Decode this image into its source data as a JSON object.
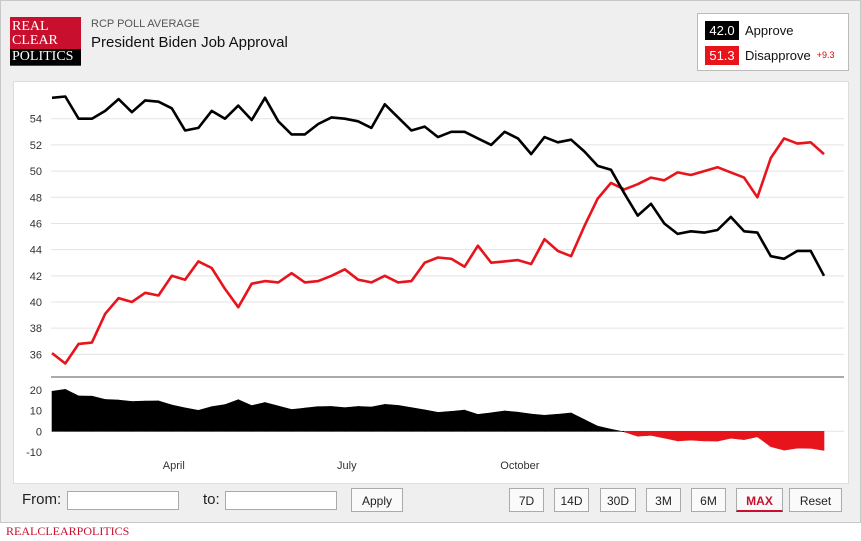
{
  "header": {
    "logo_lines": [
      "REAL",
      "CLEAR",
      "POLITICS"
    ],
    "kicker": "RCP POLL AVERAGE",
    "title": "President Biden Job Approval"
  },
  "legend": {
    "approve": {
      "value": "42.0",
      "label": "Approve",
      "color": "#000000"
    },
    "disapprove": {
      "value": "51.3",
      "label": "Disapprove",
      "change": "+9.3",
      "color": "#e8141c"
    }
  },
  "controls": {
    "from_label": "From:",
    "to_label": "to:",
    "apply": "Apply",
    "ranges": [
      "7D",
      "14D",
      "30D",
      "3M",
      "6M",
      "MAX"
    ],
    "active_range": "MAX",
    "reset": "Reset"
  },
  "footer": {
    "brand": "REALCLEARPOLITICS"
  },
  "chart_data": {
    "type": "line",
    "x_ticks": [
      "April",
      "July",
      "October"
    ],
    "y_ticks": [
      36,
      38,
      40,
      42,
      44,
      46,
      48,
      50,
      52,
      54
    ],
    "ylim": [
      34.5,
      56.5
    ],
    "grid": true,
    "series": [
      {
        "name": "Approve",
        "color": "#000000",
        "values": [
          55.6,
          55.7,
          54.0,
          54.0,
          54.6,
          55.5,
          54.5,
          55.4,
          55.3,
          54.8,
          53.1,
          53.3,
          54.6,
          54.0,
          55.0,
          53.9,
          55.6,
          53.8,
          52.8,
          52.8,
          53.6,
          54.1,
          54.0,
          53.8,
          53.3,
          55.1,
          54.1,
          53.1,
          53.4,
          52.6,
          53.0,
          53.0,
          52.5,
          52.0,
          53.0,
          52.5,
          51.3,
          52.6,
          52.2,
          52.4,
          51.5,
          50.4,
          50.1,
          48.3,
          46.6,
          47.5,
          46.0,
          45.2,
          45.4,
          45.3,
          45.5,
          46.5,
          45.4,
          45.3,
          43.5,
          43.3,
          43.9,
          43.9,
          42.0
        ]
      },
      {
        "name": "Disapprove",
        "color": "#e8141c",
        "values": [
          36.1,
          35.3,
          36.8,
          36.9,
          39.1,
          40.3,
          40.0,
          40.7,
          40.5,
          42.0,
          41.7,
          43.1,
          42.6,
          41.0,
          39.6,
          41.4,
          41.6,
          41.5,
          42.2,
          41.5,
          41.6,
          42.0,
          42.5,
          41.7,
          41.5,
          42.0,
          41.5,
          41.6,
          43.0,
          43.4,
          43.3,
          42.7,
          44.3,
          43.0,
          43.1,
          43.2,
          42.9,
          44.8,
          43.9,
          43.5,
          45.8,
          47.9,
          49.1,
          48.6,
          49.0,
          49.5,
          49.3,
          49.9,
          49.7,
          50.0,
          50.3,
          49.9,
          49.5,
          48.0,
          51.0,
          52.5,
          52.1,
          52.2,
          51.3
        ]
      }
    ],
    "spread": {
      "ylim": [
        -14,
        24
      ],
      "y_ticks": [
        20,
        10,
        0,
        -10
      ],
      "positive_color": "#000000",
      "negative_color": "#e8141c"
    }
  }
}
